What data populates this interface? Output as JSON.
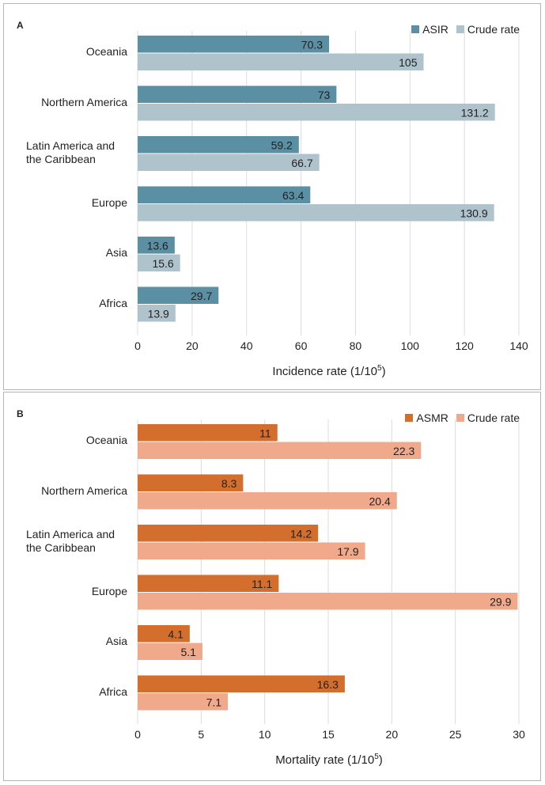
{
  "chart_data": [
    {
      "panel": "A",
      "type": "bar",
      "orientation": "horizontal",
      "categories": [
        "Oceania",
        "Northern America",
        "Latin America and the Caribbean",
        "Europe",
        "Asia",
        "Africa"
      ],
      "category_lines": [
        [
          "Oceania"
        ],
        [
          "Northern America"
        ],
        [
          "Latin America and",
          "the Caribbean"
        ],
        [
          "Europe"
        ],
        [
          "Asia"
        ],
        [
          "Africa"
        ]
      ],
      "series": [
        {
          "name": "ASIR",
          "color": "#5b8fa3",
          "values": [
            70.3,
            73,
            59.2,
            63.4,
            13.6,
            29.7
          ]
        },
        {
          "name": "Crude rate",
          "color": "#afc3cd",
          "values": [
            105,
            131.2,
            66.7,
            130.9,
            15.6,
            13.9
          ]
        }
      ],
      "data_labels": [
        [
          "70.3",
          "73",
          "59.2",
          "63.4",
          "13.6",
          "29.7"
        ],
        [
          "105",
          "131.2",
          "66.7",
          "130.9",
          "15.6",
          "13.9"
        ]
      ],
      "xlim": [
        0,
        140
      ],
      "xticks": [
        "0",
        "20",
        "40",
        "60",
        "80",
        "100",
        "120",
        "140"
      ],
      "xlabel": "Incidence rate (1/10",
      "xlabel_sup": "5",
      "xlabel_close": ")",
      "legend_position": "top-right",
      "grid": true
    },
    {
      "panel": "B",
      "type": "bar",
      "orientation": "horizontal",
      "categories": [
        "Oceania",
        "Northern America",
        "Latin America and the Caribbean",
        "Europe",
        "Asia",
        "Africa"
      ],
      "category_lines": [
        [
          "Oceania"
        ],
        [
          "Northern America"
        ],
        [
          "Latin America and",
          "the Caribbean"
        ],
        [
          "Europe"
        ],
        [
          "Asia"
        ],
        [
          "Africa"
        ]
      ],
      "series": [
        {
          "name": "ASMR",
          "color": "#d36e2c",
          "values": [
            11,
            8.3,
            14.2,
            11.1,
            4.1,
            16.3
          ]
        },
        {
          "name": "Crude rate",
          "color": "#f0a98b",
          "values": [
            22.3,
            20.4,
            17.9,
            29.9,
            5.1,
            7.1
          ]
        }
      ],
      "data_labels": [
        [
          "11",
          "8.3",
          "14.2",
          "11.1",
          "4.1",
          "16.3"
        ],
        [
          "22.3",
          "20.4",
          "17.9",
          "29.9",
          "5.1",
          "7.1"
        ]
      ],
      "xlim": [
        0,
        30
      ],
      "xticks": [
        "0",
        "5",
        "10",
        "15",
        "20",
        "25",
        "30"
      ],
      "xlabel": "Mortality rate (1/10",
      "xlabel_sup": "5",
      "xlabel_close": ")",
      "legend_position": "top-right",
      "grid": true
    }
  ]
}
